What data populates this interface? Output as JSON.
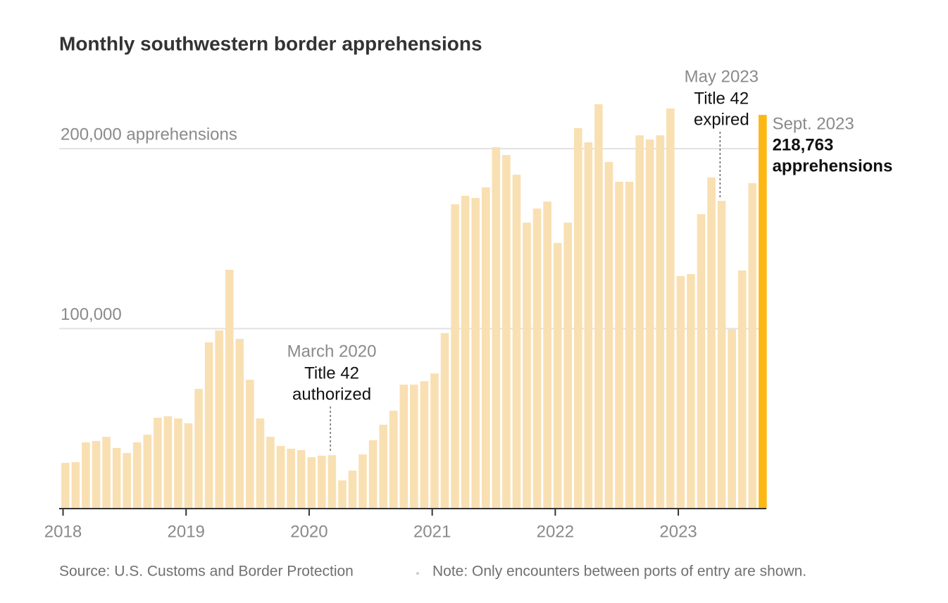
{
  "chart_data": {
    "type": "bar",
    "title": "Monthly southwestern border apprehensions",
    "categories": [
      null,
      null,
      null,
      null,
      null,
      null,
      null,
      null,
      null,
      null,
      null,
      null,
      null,
      null,
      null,
      null,
      null,
      null,
      null,
      null,
      null,
      null,
      null,
      null,
      null,
      null,
      null,
      null,
      null,
      null,
      null,
      null,
      null,
      null,
      null,
      null,
      null,
      null,
      null,
      null,
      null,
      null,
      null,
      null,
      null,
      null,
      null,
      null,
      null,
      null,
      null,
      null,
      null,
      null,
      null,
      null,
      null,
      null,
      null,
      null,
      null,
      null,
      null,
      null,
      null,
      null,
      null,
      null,
      null
    ],
    "values": [
      25400,
      25800,
      36800,
      37600,
      39900,
      33700,
      30900,
      36800,
      41100,
      50500,
      51300,
      50100,
      47400,
      66500,
      92400,
      99000,
      132700,
      94300,
      71600,
      50100,
      39900,
      34800,
      33300,
      32500,
      28600,
      29400,
      29700,
      15700,
      21100,
      30100,
      38000,
      46600,
      54400,
      68900,
      68900,
      70800,
      75100,
      97500,
      169100,
      173800,
      172600,
      178500,
      200800,
      196500,
      185500,
      158900,
      166700,
      170600,
      147600,
      158900,
      211400,
      203500,
      224700,
      192600,
      181600,
      181600,
      207400,
      205100,
      207400,
      222300,
      129200,
      130300,
      163600,
      184000,
      171000,
      99800,
      132300,
      180800,
      218763
    ],
    "value_labels": [
      null,
      null,
      null,
      null,
      null,
      null,
      null,
      null,
      null,
      null,
      null,
      null,
      null,
      null,
      null,
      null,
      null,
      null,
      null,
      null,
      null,
      null,
      null,
      null,
      null,
      null,
      null,
      null,
      null,
      null,
      null,
      null,
      null,
      null,
      null,
      null,
      null,
      null,
      null,
      null,
      null,
      null,
      null,
      null,
      null,
      null,
      null,
      null,
      null,
      null,
      null,
      null,
      null,
      null,
      null,
      null,
      null,
      null,
      null,
      null,
      null,
      null,
      null,
      null,
      null,
      null,
      null,
      null,
      "218,763"
    ],
    "color": "#f9e0b2",
    "highlight_color": "#fdb714",
    "xlim": [
      0,
      69
    ],
    "xticks": [
      {
        "value": 0,
        "label": "2018"
      },
      {
        "value": 12,
        "label": "2019"
      },
      {
        "value": 24,
        "label": "2020"
      },
      {
        "value": 36,
        "label": "2021"
      },
      {
        "value": 48,
        "label": "2022"
      },
      {
        "value": 60,
        "label": "2023"
      }
    ],
    "ylim": [
      0,
      230000
    ],
    "yticks": [
      {
        "value": 100000,
        "label": "100,000"
      },
      {
        "value": 200000,
        "label": "200,000 apprehensions"
      }
    ],
    "grid": true,
    "annotations": [
      {
        "x": 26,
        "date": "March 2020",
        "text": [
          "Title 42",
          "authorized"
        ]
      },
      {
        "x": 64,
        "date": "May 2023",
        "text": [
          "Title 42",
          "expired"
        ]
      },
      {
        "x": 68,
        "date": "Sept. 2023",
        "text": [
          "apprehensions"
        ]
      }
    ],
    "source": "Source: U.S. Customs and Border Protection",
    "note": "Note: Only encounters between ports of entry are shown."
  }
}
